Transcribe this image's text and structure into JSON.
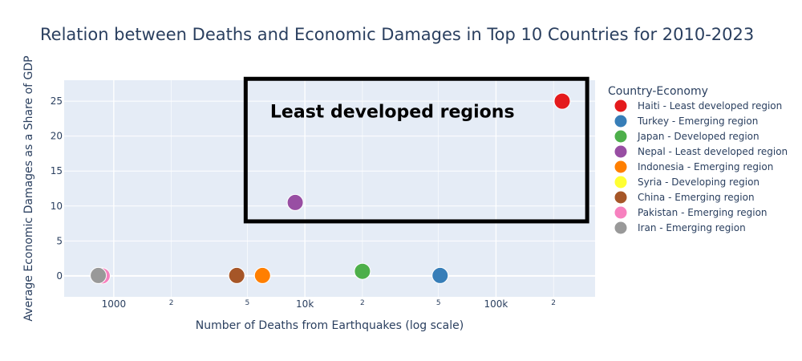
{
  "chart_data": {
    "type": "scatter",
    "title": "Relation between Deaths and Economic Damages in Top 10 Countries for 2010-2023",
    "xlabel": "Number of Deaths from Earthquakes (log scale)",
    "ylabel": "Average Economic Damages as a Share of GDP",
    "x_scale": "log",
    "xlim": [
      550,
      330000
    ],
    "ylim": [
      -3,
      28
    ],
    "grid": true,
    "legend_title": "Country-Economy",
    "legend_position": "right",
    "x_ticks": [
      {
        "value": 1000,
        "label": "1000",
        "major": true
      },
      {
        "value": 2000,
        "label": "2",
        "major": false
      },
      {
        "value": 5000,
        "label": "5",
        "major": false
      },
      {
        "value": 10000,
        "label": "10k",
        "major": true
      },
      {
        "value": 20000,
        "label": "2",
        "major": false
      },
      {
        "value": 50000,
        "label": "5",
        "major": false
      },
      {
        "value": 100000,
        "label": "100k",
        "major": true
      },
      {
        "value": 200000,
        "label": "2",
        "major": false
      }
    ],
    "y_ticks": [
      0,
      5,
      10,
      15,
      20,
      25
    ],
    "series": [
      {
        "name": "Haiti - Least developed region",
        "color": "#e41a1c",
        "x": 222000,
        "y": 25
      },
      {
        "name": "Turkey - Emerging region",
        "color": "#377eb8",
        "x": 51000,
        "y": 0.05
      },
      {
        "name": "Japan - Developed region",
        "color": "#4daf4a",
        "x": 20000,
        "y": 0.65
      },
      {
        "name": "Nepal - Least developed region",
        "color": "#984ea3",
        "x": 8900,
        "y": 10.5
      },
      {
        "name": "Indonesia - Emerging region",
        "color": "#ff7f00",
        "x": 6000,
        "y": 0.05
      },
      {
        "name": "Syria - Developing region",
        "color": "#ffff33",
        "x": null,
        "y": null
      },
      {
        "name": "China - Emerging region",
        "color": "#a65628",
        "x": 4400,
        "y": 0.05
      },
      {
        "name": "Pakistan - Emerging region",
        "color": "#f781bf",
        "x": 870,
        "y": 0.0
      },
      {
        "name": "Iran - Emerging region",
        "color": "#999999",
        "x": 830,
        "y": 0.05
      }
    ],
    "annotation": {
      "text": "Least developed regions",
      "box_x_range": [
        4900,
        300000
      ],
      "box_y_range": [
        7.8,
        28.2
      ]
    }
  }
}
